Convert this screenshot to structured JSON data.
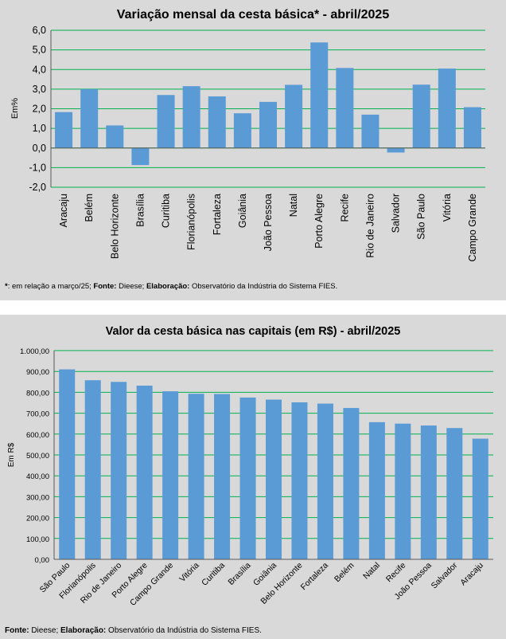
{
  "chart_data": [
    {
      "type": "bar",
      "title": "Variação  mensal da cesta básica* - abril/2025",
      "ylabel": "Em%",
      "xlabel": "",
      "ylim": [
        -2.0,
        6.0
      ],
      "yticks": [
        "6,0",
        "5,0",
        "4,0",
        "3,0",
        "2,0",
        "1,0",
        "0,0",
        "-1,0",
        "-2,0"
      ],
      "categories": [
        "Aracaju",
        "Belém",
        "Belo Horizonte",
        "Brasília",
        "Curitiba",
        "Florianópolis",
        "Fortaleza",
        "Goiânia",
        "João Pessoa",
        "Natal",
        "Porto Alegre",
        "Recife",
        "Rio de Janeiro",
        "Salvador",
        "São Paulo",
        "Vitória",
        "Campo Grande"
      ],
      "values": [
        1.83,
        3.0,
        1.15,
        -0.87,
        2.7,
        3.15,
        2.63,
        1.77,
        2.35,
        3.22,
        5.38,
        4.08,
        1.7,
        -0.23,
        3.23,
        4.05,
        2.08
      ],
      "grid": true,
      "bar_color": "#5b9bd5",
      "grid_color": "#00b050",
      "footnote": {
        "star": "*",
        "p1": ": em relação a março/25; ",
        "fonte_label": "Fonte:",
        "fonte": " Dieese; ",
        "elab_label": "Elaboração:",
        "elab": " Observatório da Indústria do Sistema FIES."
      }
    },
    {
      "type": "bar",
      "title": "Valor da cesta básica nas capitais (em R$) - abril/2025",
      "ylabel": "Em R$",
      "xlabel": "",
      "ylim": [
        0,
        1000
      ],
      "yticks": [
        "1.000,00",
        "900,00",
        "800,00",
        "700,00",
        "600,00",
        "500,00",
        "400,00",
        "300,00",
        "200,00",
        "100,00",
        "0,00"
      ],
      "categories": [
        "São Paulo",
        "Florianópolis",
        "Rio de Janeiro",
        "Porto Alegre",
        "Campo Grande",
        "Vitória",
        "Curitiba",
        "Brasília",
        "Goiânia",
        "Belo Horizonte",
        "Fortaleza",
        "Belém",
        "Natal",
        "Recife",
        "João Pessoa",
        "Salvador",
        "Aracaju"
      ],
      "values": [
        910,
        858,
        850,
        832,
        805,
        793,
        792,
        775,
        765,
        752,
        746,
        725,
        657,
        650,
        641,
        629,
        578
      ],
      "grid": true,
      "bar_color": "#5b9bd5",
      "grid_color": "#00b050",
      "footnote": {
        "fonte_label": "Fonte:",
        "fonte": " Dieese; ",
        "elab_label": "Elaboração:",
        "elab": " Observatório da Indústria do Sistema FIES."
      }
    }
  ]
}
